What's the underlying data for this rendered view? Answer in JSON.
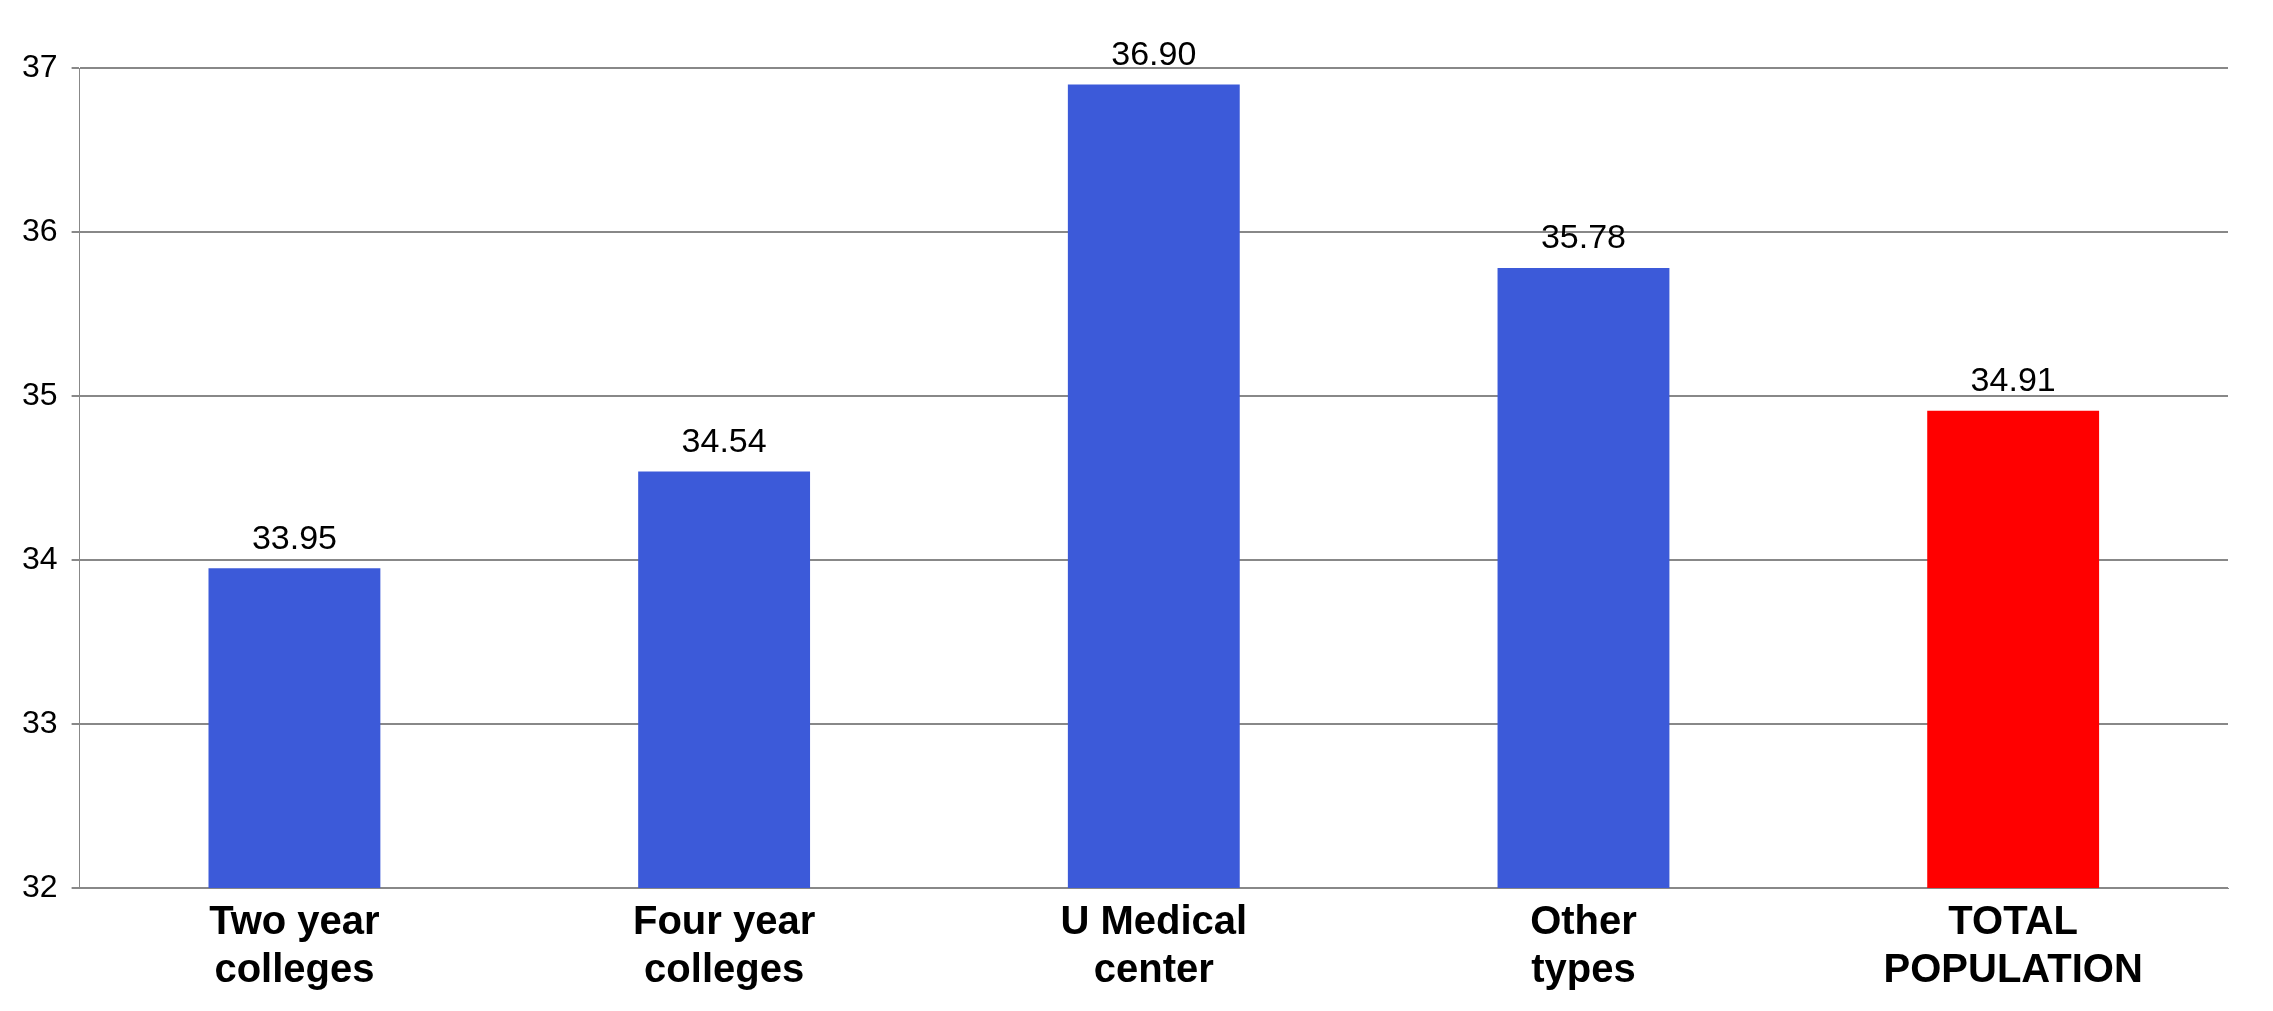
{
  "chart_data": {
    "type": "bar",
    "categories": [
      "Two year colleges",
      "Four year colleges",
      "U Medical center",
      "Other types",
      "TOTAL POPULATION"
    ],
    "values": [
      33.95,
      34.54,
      36.9,
      35.78,
      34.91
    ],
    "colors": [
      "#3c5ad9",
      "#3c5ad9",
      "#3c5ad9",
      "#3c5ad9",
      "#ff0000"
    ],
    "value_labels": [
      "33.95",
      "34.54",
      "36.90",
      "35.78",
      "34.91"
    ],
    "ylim": [
      32,
      37
    ],
    "yticks": [
      32,
      33,
      34,
      35,
      36,
      37
    ],
    "grid": "y",
    "legend": false
  }
}
